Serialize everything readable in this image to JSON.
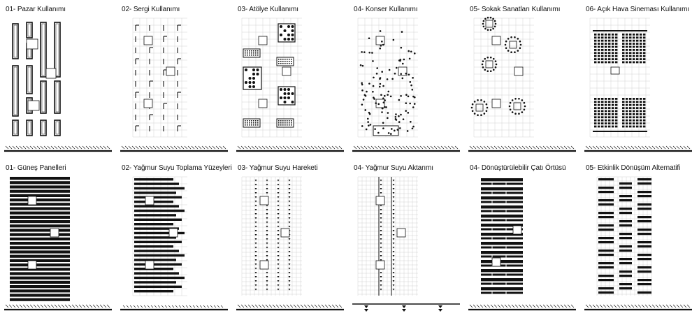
{
  "sheet": {
    "panels": [
      {
        "id": "p01",
        "title": "01- Pazar Kullanımı",
        "kind": "market"
      },
      {
        "id": "p02",
        "title": "02- Sergi Kullanımı",
        "kind": "exhibit"
      },
      {
        "id": "p03",
        "title": "03- Atölye  Kullanımı",
        "kind": "workshop"
      },
      {
        "id": "p04",
        "title": "04- Konser Kullanımı",
        "kind": "concert"
      },
      {
        "id": "p05",
        "title": "05- Sokak Sanatları Kullanımı",
        "kind": "street"
      },
      {
        "id": "p06",
        "title": "06- Açık Hava Sineması Kullanımı",
        "kind": "cinema"
      },
      {
        "id": "p07",
        "title": "01- Güneş Panelleri",
        "kind": "solar"
      },
      {
        "id": "p08",
        "title": "02- Yağmur Suyu Toplama Yüzeyleri",
        "kind": "rain_surface"
      },
      {
        "id": "p09",
        "title": "03- Yağmur Suyu Hareketi",
        "kind": "rain_move"
      },
      {
        "id": "p10",
        "title": "04- Yağmur Suyu Aktarımı",
        "kind": "rain_transfer"
      },
      {
        "id": "p11",
        "title": "04- Dönüştürülebilir Çatı Örtüsü",
        "kind": "roof"
      },
      {
        "id": "p12",
        "title": "05- Etkinlik Dönüşüm Alternatifi",
        "kind": "event_alt"
      }
    ],
    "colors": {
      "ink": "#111111",
      "grid": "#c8c8c8",
      "paper": "#ffffff"
    }
  }
}
